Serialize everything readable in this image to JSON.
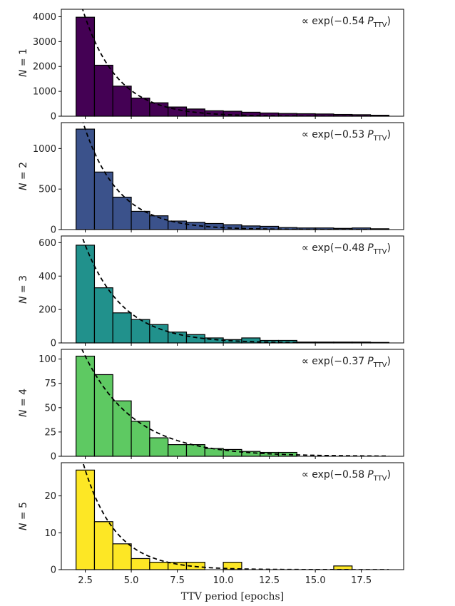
{
  "chart_data": {
    "type": "bar",
    "xlabel": "TTV period [epochs]",
    "xlim": [
      1.2,
      19.8
    ],
    "xticks": [
      2.5,
      5.0,
      7.5,
      10.0,
      12.5,
      15.0,
      17.5
    ],
    "xtick_labels": [
      "2.5",
      "5.0",
      "7.5",
      "10.0",
      "12.5",
      "15.0",
      "17.5"
    ],
    "bin_edges": [
      2,
      3,
      4,
      5,
      6,
      7,
      8,
      9,
      10,
      11,
      12,
      13,
      14,
      15,
      16,
      17,
      18,
      19
    ],
    "panels": [
      {
        "ylabel": "N = 1",
        "ylabel_var": "N",
        "ylabel_val": "1",
        "color": "#440154",
        "ylim": [
          0,
          4300
        ],
        "yticks": [
          0,
          1000,
          2000,
          3000,
          4000
        ],
        "values": [
          3980,
          2050,
          1210,
          730,
          540,
          370,
          290,
          220,
          200,
          160,
          130,
          110,
          100,
          90,
          70,
          60,
          40
        ],
        "fit_label_prefix": "∝ exp(−0.54",
        "fit_label_var": "P",
        "fit_label_sub": "TTV",
        "fit_label_suffix": ")",
        "fit_rate": 0.54
      },
      {
        "ylabel": "N = 2",
        "ylabel_var": "N",
        "ylabel_val": "2",
        "color": "#3b528b",
        "ylim": [
          0,
          1320
        ],
        "yticks": [
          0,
          500,
          1000
        ],
        "values": [
          1240,
          710,
          400,
          225,
          170,
          105,
          90,
          75,
          60,
          45,
          40,
          25,
          20,
          20,
          15,
          20,
          10
        ],
        "fit_label_prefix": "∝ exp(−0.53",
        "fit_label_var": "P",
        "fit_label_sub": "TTV",
        "fit_label_suffix": ")",
        "fit_rate": 0.53
      },
      {
        "ylabel": "N = 3",
        "ylabel_var": "N",
        "ylabel_val": "3",
        "color": "#21918c",
        "ylim": [
          0,
          640
        ],
        "yticks": [
          0,
          200,
          400,
          600
        ],
        "values": [
          585,
          330,
          180,
          140,
          110,
          65,
          50,
          30,
          20,
          30,
          15,
          15,
          5,
          5,
          5,
          5,
          3
        ],
        "fit_label_prefix": "∝ exp(−0.48",
        "fit_label_var": "P",
        "fit_label_sub": "TTV",
        "fit_label_suffix": ")",
        "fit_rate": 0.48
      },
      {
        "ylabel": "N = 4",
        "ylabel_var": "N",
        "ylabel_val": "4",
        "color": "#5ec962",
        "ylim": [
          0,
          110
        ],
        "yticks": [
          0,
          25,
          50,
          75,
          100
        ],
        "values": [
          103,
          84,
          57,
          36,
          19,
          12,
          12,
          8,
          7,
          5,
          4,
          4,
          0,
          0,
          0,
          0,
          0
        ],
        "fit_label_prefix": "∝ exp(−0.37",
        "fit_label_var": "P",
        "fit_label_sub": "TTV",
        "fit_label_suffix": ")",
        "fit_rate": 0.37
      },
      {
        "ylabel": "N = 5",
        "ylabel_var": "N",
        "ylabel_val": "5",
        "color": "#fde725",
        "ylim": [
          0,
          29
        ],
        "yticks": [
          0,
          10,
          20
        ],
        "values": [
          27,
          13,
          7,
          3,
          2,
          2,
          2,
          0,
          2,
          0,
          0,
          0,
          0,
          0,
          1,
          0,
          0
        ],
        "fit_label_prefix": "∝ exp(−0.58",
        "fit_label_var": "P",
        "fit_label_sub": "TTV",
        "fit_label_suffix": ")",
        "fit_rate": 0.58
      }
    ]
  }
}
